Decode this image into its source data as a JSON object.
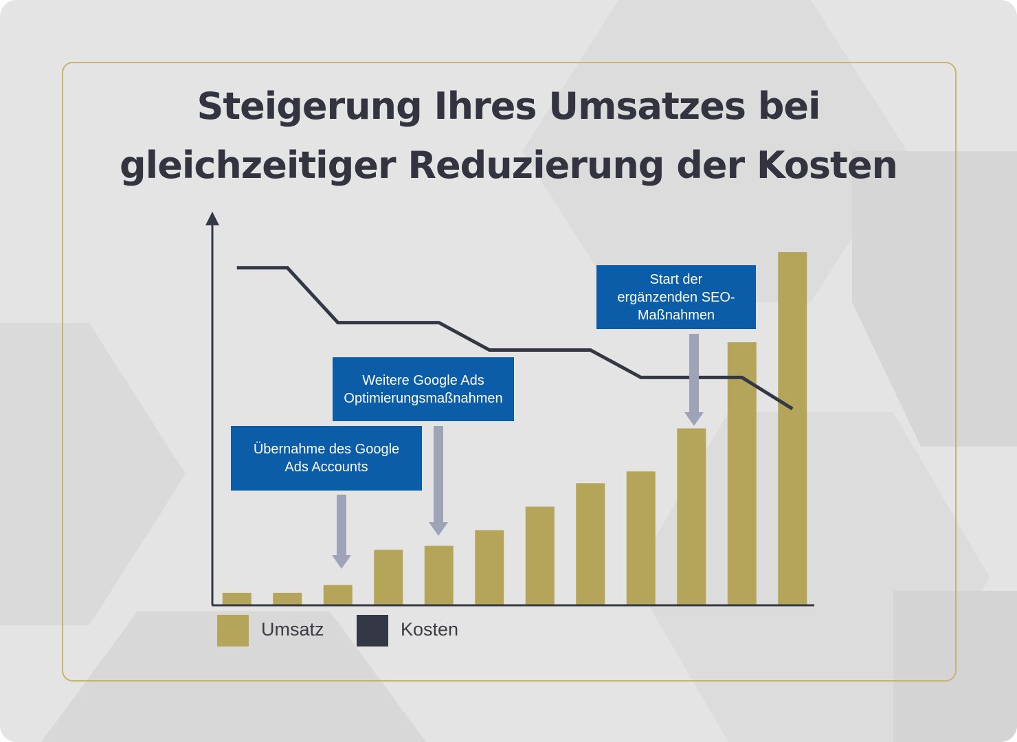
{
  "chart_data": {
    "type": "bar",
    "title": "Steigerung Ihres Umsatzes bei gleichzeitiger Reduzierung der Kosten",
    "categories": [
      null,
      null,
      null,
      null,
      null,
      null,
      null,
      null,
      null,
      null,
      null,
      null
    ],
    "ylim": [
      0,
      100
    ],
    "series": [
      {
        "name": "Umsatz",
        "type": "bar",
        "color": "#b5a55a",
        "values": [
          3,
          3,
          5,
          14,
          15,
          19,
          25,
          31,
          34,
          45,
          67,
          90
        ]
      },
      {
        "name": "Kosten",
        "type": "line",
        "color": "#343844",
        "values": [
          86,
          86,
          72,
          72,
          72,
          65,
          65,
          65,
          58,
          58,
          58,
          50
        ]
      }
    ],
    "annotations": [
      {
        "lines": [
          "Übernahme des Google",
          "Ads Accounts"
        ]
      },
      {
        "lines": [
          "Weitere Google Ads",
          "Optimierungsmaßnahmen"
        ]
      },
      {
        "lines": [
          "Start der",
          "ergänzenden SEO-",
          "Maßnahmen"
        ]
      }
    ]
  }
}
